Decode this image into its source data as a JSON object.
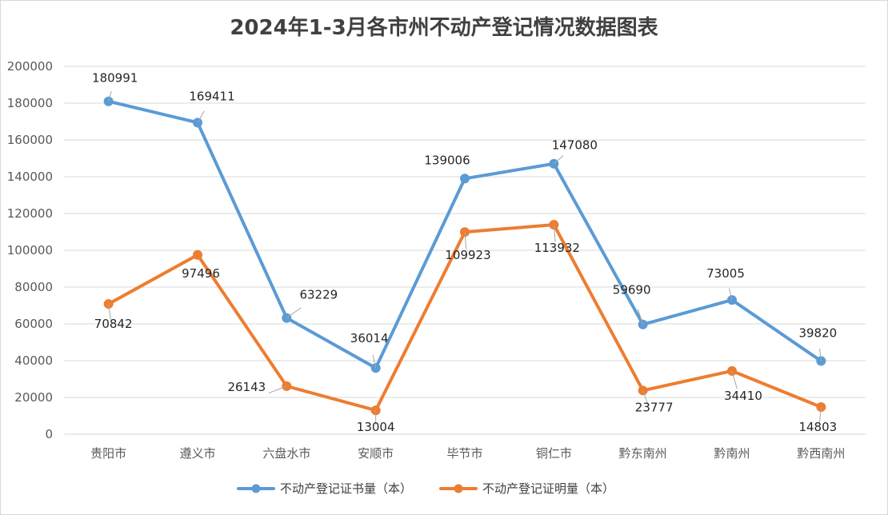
{
  "chart_data": {
    "type": "line",
    "title": "2024年1-3月各市州不动产登记情况数据图表",
    "categories": [
      "贵阳市",
      "遵义市",
      "六盘水市",
      "安顺市",
      "毕节市",
      "铜仁市",
      "黔东南州",
      "黔南州",
      "黔西南州"
    ],
    "series": [
      {
        "name": "不动产登记证书量（本）",
        "color": "#5b9bd5",
        "values": [
          180991,
          169411,
          63229,
          36014,
          139006,
          147080,
          59690,
          73005,
          39820
        ]
      },
      {
        "name": "不动产登记证明量（本）",
        "color": "#ed7d31",
        "values": [
          70842,
          97496,
          26143,
          13004,
          109923,
          113932,
          23777,
          34410,
          14803
        ]
      }
    ],
    "ylim": [
      0,
      200000
    ],
    "yticks": [
      "0",
      "20000",
      "40000",
      "60000",
      "80000",
      "100000",
      "120000",
      "140000",
      "160000",
      "180000",
      "200000"
    ],
    "grid": true,
    "legend_position": "bottom"
  }
}
